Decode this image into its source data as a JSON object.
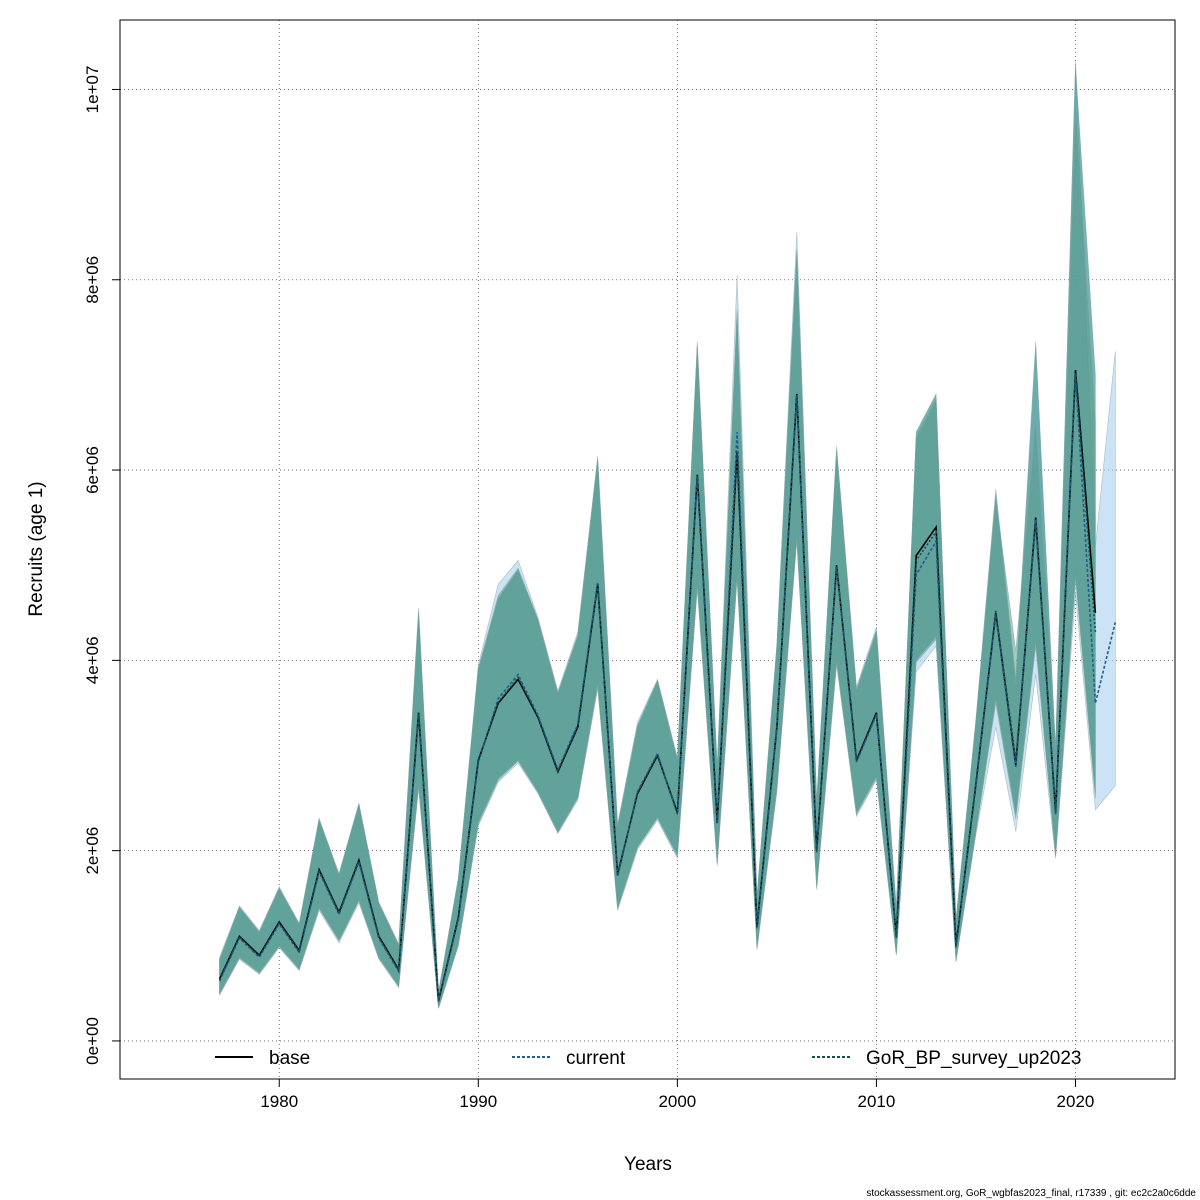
{
  "chart_data": {
    "type": "area",
    "xlabel": "Years",
    "ylabel": "Recruits (age 1)",
    "xlim": [
      1972,
      2025
    ],
    "ylim": [
      -400000,
      10730000
    ],
    "x_ticks": [
      1980,
      1990,
      2000,
      2010,
      2020
    ],
    "y_ticks": [
      0,
      2000000,
      4000000,
      6000000,
      8000000,
      10000000
    ],
    "y_tick_labels": [
      "0e+00",
      "2e+06",
      "4e+06",
      "6e+06",
      "8e+06",
      "1e+07"
    ],
    "grid": true,
    "legend": {
      "placement": "bottom",
      "entries": [
        "base",
        "current",
        "GoR_BP_survey_up2023"
      ]
    },
    "footer": "stockassessment.org, GoR_wgbfas2023_final, r17339 , git: ec2c2a0c6dde",
    "series": [
      {
        "name": "base",
        "line_color": "#000000",
        "line_style": "solid",
        "band_color": "#4a9a9a",
        "x": [
          1977,
          1978,
          1979,
          1980,
          1981,
          1982,
          1983,
          1984,
          1985,
          1986,
          1987,
          1988,
          1989,
          1990,
          1991,
          1992,
          1993,
          1994,
          1995,
          1996,
          1997,
          1998,
          1999,
          2000,
          2001,
          2002,
          2003,
          2004,
          2005,
          2006,
          2007,
          2008,
          2009,
          2010,
          2011,
          2012,
          2013,
          2014,
          2015,
          2016,
          2017,
          2018,
          2019,
          2020,
          2021
        ],
        "values": [
          650000,
          1100000,
          900000,
          1250000,
          950000,
          1800000,
          1350000,
          1900000,
          1100000,
          750000,
          3450000,
          420000,
          1300000,
          2950000,
          3550000,
          3800000,
          3400000,
          2830000,
          3300000,
          4800000,
          1750000,
          2600000,
          3000000,
          2400000,
          5950000,
          2300000,
          6200000,
          1200000,
          3300000,
          6800000,
          2000000,
          5000000,
          2950000,
          3450000,
          1100000,
          5100000,
          5400000,
          1000000,
          2700000,
          4500000,
          2900000,
          5500000,
          2400000,
          7050000,
          4500000
        ],
        "lower": [
          500000,
          880000,
          720000,
          1000000,
          760000,
          1400000,
          1060000,
          1480000,
          880000,
          580000,
          2700000,
          350000,
          1020000,
          2300000,
          2760000,
          2950000,
          2620000,
          2200000,
          2560000,
          3750000,
          1400000,
          2040000,
          2350000,
          1950000,
          4800000,
          1870000,
          4900000,
          980000,
          2660000,
          5300000,
          1620000,
          4000000,
          2400000,
          2780000,
          920000,
          4000000,
          4250000,
          850000,
          2200000,
          3600000,
          2380000,
          4200000,
          1950000,
          4900000,
          2600000
        ],
        "upper": [
          850000,
          1400000,
          1140000,
          1600000,
          1220000,
          2320000,
          1740000,
          2480000,
          1440000,
          1000000,
          4500000,
          500000,
          1700000,
          3900000,
          4650000,
          4950000,
          4420000,
          3650000,
          4250000,
          6100000,
          2250000,
          3300000,
          3780000,
          2950000,
          7300000,
          2860000,
          7650000,
          1500000,
          4150000,
          8300000,
          2500000,
          6200000,
          3680000,
          4300000,
          1380000,
          6400000,
          6800000,
          1260000,
          3350000,
          5750000,
          3750000,
          7300000,
          3050000,
          10250000,
          7000000
        ]
      },
      {
        "name": "current",
        "line_color": "#1f5f8f",
        "line_style": "dashed",
        "band_color": "#a8d0ec",
        "x": [
          1977,
          1978,
          1979,
          1980,
          1981,
          1982,
          1983,
          1984,
          1985,
          1986,
          1987,
          1988,
          1989,
          1990,
          1991,
          1992,
          1993,
          1994,
          1995,
          1996,
          1997,
          1998,
          1999,
          2000,
          2001,
          2002,
          2003,
          2004,
          2005,
          2006,
          2007,
          2008,
          2009,
          2010,
          2011,
          2012,
          2013,
          2014,
          2015,
          2016,
          2017,
          2018,
          2019,
          2020,
          2021,
          2022
        ],
        "values": [
          630000,
          1080000,
          880000,
          1230000,
          930000,
          1780000,
          1330000,
          1880000,
          1080000,
          730000,
          3420000,
          410000,
          1280000,
          2930000,
          3600000,
          3850000,
          3420000,
          2850000,
          3330000,
          4820000,
          1730000,
          2620000,
          3020000,
          2380000,
          5930000,
          2280000,
          6400000,
          1180000,
          3280000,
          6780000,
          1980000,
          4980000,
          2930000,
          3430000,
          1080000,
          4900000,
          5250000,
          980000,
          2680000,
          4480000,
          2880000,
          5480000,
          2380000,
          7000000,
          3550000,
          4400000
        ],
        "lower": [
          480000,
          860000,
          700000,
          980000,
          740000,
          1370000,
          1030000,
          1450000,
          860000,
          560000,
          2650000,
          340000,
          1000000,
          2260000,
          2720000,
          2920000,
          2600000,
          2180000,
          2530000,
          3700000,
          1370000,
          2010000,
          2320000,
          1920000,
          4750000,
          1840000,
          4850000,
          960000,
          2620000,
          5250000,
          1590000,
          3950000,
          2360000,
          2740000,
          900000,
          3880000,
          4150000,
          830000,
          2170000,
          3300000,
          2200000,
          3850000,
          1920000,
          4700000,
          2430000,
          2680000
        ],
        "upper": [
          880000,
          1420000,
          1160000,
          1620000,
          1240000,
          2340000,
          1760000,
          2500000,
          1460000,
          1020000,
          4550000,
          520000,
          1720000,
          3950000,
          4800000,
          5050000,
          4450000,
          3680000,
          4300000,
          6150000,
          2280000,
          3350000,
          3800000,
          2980000,
          7350000,
          2880000,
          8050000,
          1520000,
          4180000,
          8500000,
          2520000,
          6250000,
          3720000,
          4350000,
          1400000,
          6300000,
          6700000,
          1280000,
          3380000,
          5800000,
          3800000,
          7350000,
          3080000,
          10300000,
          5200000,
          7250000
        ]
      },
      {
        "name": "GoR_BP_survey_up2023",
        "line_color": "#1a4d4d",
        "line_style": "dashed",
        "band_color": "#5a9a8a",
        "x": [
          1977,
          1978,
          1979,
          1980,
          1981,
          1982,
          1983,
          1984,
          1985,
          1986,
          1987,
          1988,
          1989,
          1990,
          1991,
          1992,
          1993,
          1994,
          1995,
          1996,
          1997,
          1998,
          1999,
          2000,
          2001,
          2002,
          2003,
          2004,
          2005,
          2006,
          2007,
          2008,
          2009,
          2010,
          2011,
          2012,
          2013,
          2014,
          2015,
          2016,
          2017,
          2018,
          2019,
          2020,
          2021
        ],
        "values": [
          640000,
          1090000,
          890000,
          1240000,
          940000,
          1790000,
          1340000,
          1890000,
          1090000,
          740000,
          3440000,
          415000,
          1290000,
          2940000,
          3560000,
          3820000,
          3410000,
          2840000,
          3310000,
          4810000,
          1740000,
          2610000,
          3010000,
          2390000,
          5940000,
          2290000,
          6180000,
          1190000,
          3290000,
          6790000,
          1990000,
          4990000,
          2940000,
          3440000,
          1090000,
          5050000,
          5350000,
          990000,
          2690000,
          4520000,
          2950000,
          5450000,
          2420000,
          7020000,
          4300000
        ],
        "lower": [
          490000,
          870000,
          710000,
          990000,
          750000,
          1390000,
          1050000,
          1470000,
          870000,
          570000,
          2680000,
          345000,
          1010000,
          2280000,
          2740000,
          2940000,
          2610000,
          2190000,
          2550000,
          3730000,
          1390000,
          2030000,
          2340000,
          1940000,
          4780000,
          1860000,
          4880000,
          970000,
          2640000,
          5280000,
          1610000,
          3980000,
          2380000,
          2760000,
          910000,
          3980000,
          4220000,
          840000,
          2190000,
          3550000,
          2330000,
          4150000,
          1940000,
          4850000,
          2550000
        ],
        "upper": [
          860000,
          1410000,
          1150000,
          1610000,
          1230000,
          2330000,
          1750000,
          2490000,
          1450000,
          1010000,
          4520000,
          510000,
          1710000,
          3920000,
          4680000,
          4970000,
          4430000,
          3660000,
          4270000,
          6120000,
          2260000,
          3320000,
          3790000,
          2960000,
          7320000,
          2870000,
          7700000,
          1510000,
          4160000,
          8320000,
          2510000,
          6220000,
          3700000,
          4320000,
          1390000,
          6350000,
          6750000,
          1270000,
          3360000,
          5700000,
          4100000,
          6500000,
          3060000,
          9800000,
          6500000
        ]
      }
    ]
  }
}
